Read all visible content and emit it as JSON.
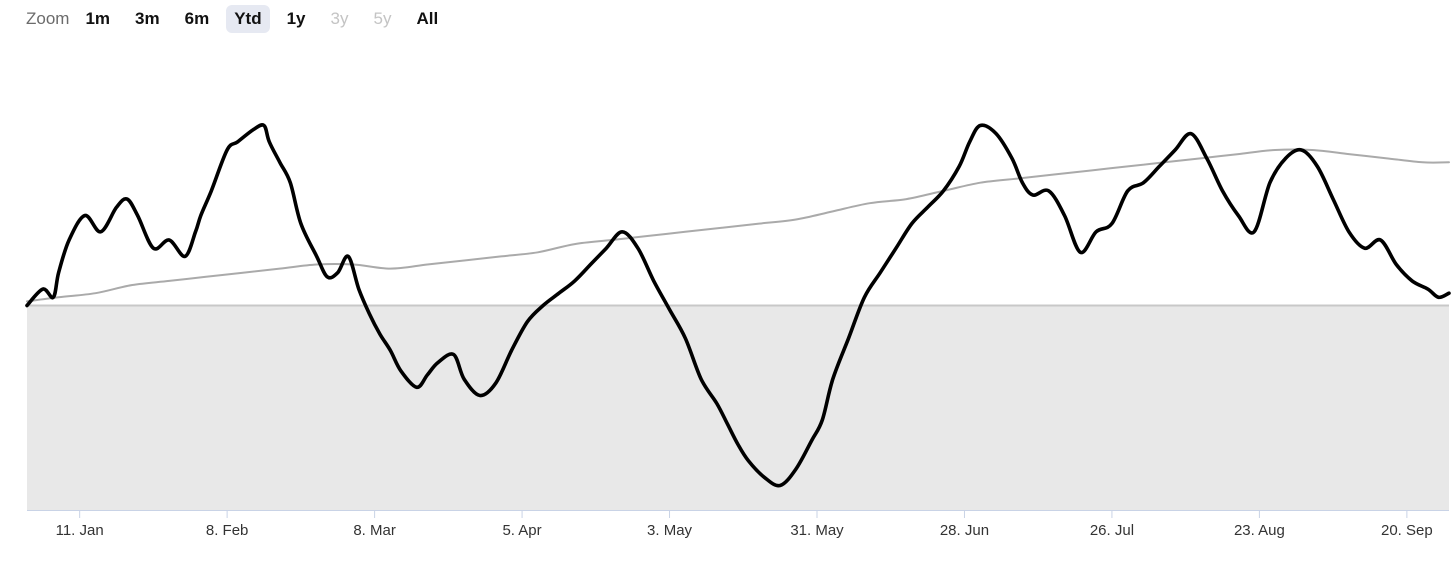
{
  "zoom": {
    "label": "Zoom",
    "buttons": [
      {
        "label": "1m",
        "state": "normal"
      },
      {
        "label": "3m",
        "state": "normal"
      },
      {
        "label": "6m",
        "state": "normal"
      },
      {
        "label": "Ytd",
        "state": "selected"
      },
      {
        "label": "1y",
        "state": "normal"
      },
      {
        "label": "3y",
        "state": "disabled"
      },
      {
        "label": "5y",
        "state": "disabled"
      },
      {
        "label": "All",
        "state": "normal"
      }
    ]
  },
  "colors": {
    "primary_series": "#000000",
    "benchmark_series": "#aaaaaa",
    "negative_area": "#e8e8e8",
    "baseline": "#c8c8c8",
    "axis": "#c9d3e6"
  },
  "chart_data": {
    "type": "line",
    "x_ticks": [
      "11. Jan",
      "8. Feb",
      "8. Mar",
      "5. Apr",
      "3. May",
      "31. May",
      "28. Jun",
      "26. Jul",
      "23. Aug",
      "20. Sep"
    ],
    "x_range": [
      "1. Jan",
      "28. Sep"
    ],
    "y_axis_labels": "none",
    "baseline_value": 0,
    "negative_region_shaded": true,
    "grid": false,
    "legend": "none",
    "series": [
      {
        "role": "primary",
        "x": [
          "1. Jan",
          "4. Jan",
          "6. Jan",
          "7. Jan",
          "9. Jan",
          "12. Jan",
          "15. Jan",
          "18. Jan",
          "20. Jan",
          "22. Jan",
          "25. Jan",
          "28. Jan",
          "31. Jan",
          "2. Feb",
          "3. Feb",
          "5. Feb",
          "8. Feb",
          "10. Feb",
          "13. Feb",
          "15. Feb",
          "16. Feb",
          "18. Feb",
          "20. Feb",
          "22. Feb",
          "25. Feb",
          "27. Feb",
          "1. Mar",
          "3. Mar",
          "5. Mar",
          "7. Mar",
          "9. Mar",
          "11. Mar",
          "13. Mar",
          "16. Mar",
          "18. Mar",
          "20. Mar",
          "23. Mar",
          "25. Mar",
          "28. Mar",
          "31. Mar",
          "3. Apr",
          "6. Apr",
          "9. Apr",
          "12. Apr",
          "15. Apr",
          "18. Apr",
          "21. Apr",
          "24. Apr",
          "27. Apr",
          "30. Apr",
          "3. May",
          "6. May",
          "9. May",
          "12. May",
          "14. May",
          "16. May",
          "18. May",
          "21. May",
          "24. May",
          "27. May",
          "30. May",
          "1. Jun",
          "3. Jun",
          "6. Jun",
          "9. Jun",
          "12. Jun",
          "15. Jun",
          "18. Jun",
          "21. Jun",
          "24. Jun",
          "27. Jun",
          "29. Jun",
          "1. Jul",
          "4. Jul",
          "7. Jul",
          "9. Jul",
          "11. Jul",
          "14. Jul",
          "17. Jul",
          "20. Jul",
          "23. Jul",
          "26. Jul",
          "29. Jul",
          "1. Aug",
          "4. Aug",
          "7. Aug",
          "10. Aug",
          "13. Aug",
          "16. Aug",
          "19. Aug",
          "22. Aug",
          "25. Aug",
          "28. Aug",
          "31. Aug",
          "3. Sep",
          "6. Sep",
          "9. Sep",
          "12. Sep",
          "15. Sep",
          "18. Sep",
          "21. Sep",
          "24. Sep",
          "26. Sep",
          "28. Sep"
        ],
        "y": [
          0.0,
          4.0,
          2.0,
          8.0,
          16.0,
          22.0,
          18.0,
          24.0,
          26.0,
          22.0,
          14.0,
          16.0,
          12.0,
          18.0,
          22.0,
          28.0,
          38.0,
          40.0,
          43.0,
          44.0,
          40.0,
          35.0,
          30.0,
          20.0,
          12.0,
          7.0,
          8.0,
          12.0,
          4.0,
          -2.0,
          -7.0,
          -11.0,
          -16.0,
          -20.0,
          -17.0,
          -14.0,
          -12.0,
          -18.0,
          -22.0,
          -19.0,
          -11.0,
          -4.0,
          0.0,
          3.0,
          6.0,
          10.0,
          14.0,
          18.0,
          14.0,
          6.0,
          -1.0,
          -8.0,
          -18.0,
          -24.0,
          -29.0,
          -34.0,
          -38.0,
          -42.0,
          -44.0,
          -40.0,
          -33.0,
          -28.0,
          -18.0,
          -8.0,
          2.0,
          8.0,
          14.0,
          20.0,
          24.0,
          28.0,
          34.0,
          40.0,
          44.0,
          42.0,
          36.0,
          30.0,
          27.0,
          28.0,
          22.0,
          13.0,
          18.0,
          20.0,
          28.0,
          30.0,
          34.0,
          38.0,
          42.0,
          36.0,
          28.0,
          22.0,
          18.0,
          30.0,
          36.0,
          38.0,
          34.0,
          26.0,
          18.0,
          14.0,
          16.0,
          10.0,
          6.0,
          4.0,
          2.0,
          3.0
        ]
      },
      {
        "role": "benchmark",
        "x": [
          "1. Jan",
          "7. Jan",
          "14. Jan",
          "21. Jan",
          "28. Jan",
          "4. Feb",
          "11. Feb",
          "18. Feb",
          "25. Feb",
          "4. Mar",
          "11. Mar",
          "18. Mar",
          "25. Mar",
          "1. Apr",
          "8. Apr",
          "15. Apr",
          "22. Apr",
          "29. Apr",
          "6. May",
          "13. May",
          "20. May",
          "27. May",
          "3. Jun",
          "10. Jun",
          "17. Jun",
          "24. Jun",
          "1. Jul",
          "8. Jul",
          "15. Jul",
          "22. Jul",
          "29. Jul",
          "5. Aug",
          "12. Aug",
          "19. Aug",
          "26. Aug",
          "2. Sep",
          "9. Sep",
          "16. Sep",
          "23. Sep",
          "28. Sep"
        ],
        "y": [
          1,
          2,
          3,
          5,
          6,
          7,
          8,
          9,
          10,
          10,
          9,
          10,
          11,
          12,
          13,
          15,
          16,
          17,
          18,
          19,
          20,
          21,
          23,
          25,
          26,
          28,
          30,
          31,
          32,
          33,
          34,
          35,
          36,
          37,
          38,
          38,
          37,
          36,
          35,
          35
        ]
      }
    ]
  }
}
